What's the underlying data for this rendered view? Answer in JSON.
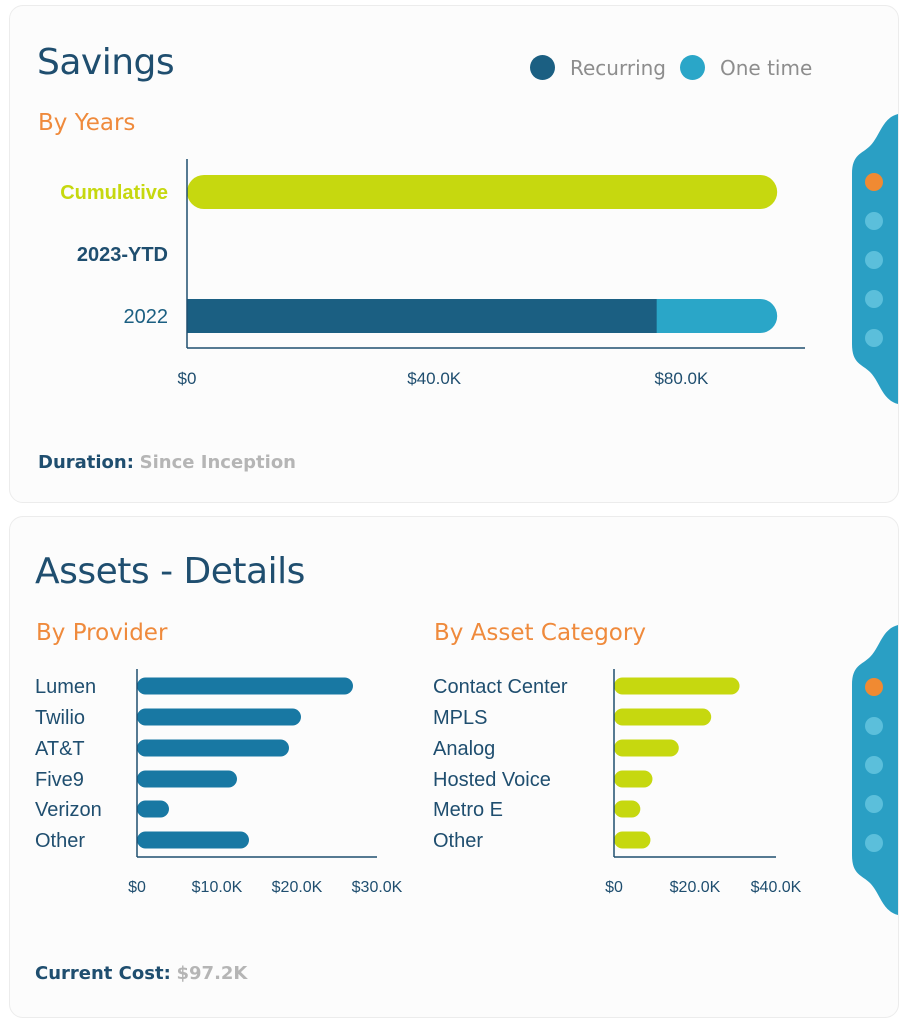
{
  "colors": {
    "recurring": "#1b5f82",
    "one_time": "#2aa6c8",
    "cumulative": "#c6d80f",
    "provider_bar": "#1878a3",
    "category_bar": "#c6d80f",
    "axis": "#1f4e6f",
    "orange": "#ef8a3c",
    "tab_blue": "#2a9fc4"
  },
  "savings": {
    "title": "Savings",
    "subtitle": "By Years",
    "legend": [
      {
        "label": "Recurring",
        "color": "#1b5f82"
      },
      {
        "label": "One time",
        "color": "#2aa6c8"
      }
    ],
    "footer": {
      "label": "Duration:",
      "value": "Since Inception"
    }
  },
  "assets": {
    "title": "Assets - Details",
    "provider_subtitle": "By Provider",
    "category_subtitle": "By Asset Category",
    "footer": {
      "label": "Current Cost:",
      "value": "$97.2K"
    }
  },
  "chart_data": [
    {
      "type": "bar",
      "orientation": "horizontal",
      "stacked": true,
      "title": "By Years",
      "categories": [
        "Cumulative",
        "2023-YTD",
        "2022"
      ],
      "series": [
        {
          "name": "Recurring",
          "values": [
            null,
            0,
            76000
          ]
        },
        {
          "name": "One time",
          "values": [
            null,
            0,
            19500
          ]
        },
        {
          "name": "Cumulative",
          "values": [
            95500,
            null,
            null
          ]
        }
      ],
      "xlim": [
        0,
        100000
      ],
      "ticks": [
        "$0",
        "$40.0K",
        "$80.0K"
      ],
      "tick_values": [
        0,
        40000,
        80000
      ]
    },
    {
      "type": "bar",
      "orientation": "horizontal",
      "title": "By Provider",
      "categories": [
        "Lumen",
        "Twilio",
        "AT&T",
        "Five9",
        "Verizon",
        "Other"
      ],
      "values": [
        27000,
        20500,
        19000,
        12500,
        4000,
        14000
      ],
      "xlim": [
        0,
        30000
      ],
      "ticks": [
        "$0",
        "$10.0K",
        "$20.0K",
        "$30.0K"
      ],
      "tick_values": [
        0,
        10000,
        20000,
        30000
      ]
    },
    {
      "type": "bar",
      "orientation": "horizontal",
      "title": "By Asset Category",
      "categories": [
        "Contact Center",
        "MPLS",
        "Analog",
        "Hosted Voice",
        "Metro E",
        "Other"
      ],
      "values": [
        31000,
        24000,
        16000,
        9500,
        6500,
        9000
      ],
      "xlim": [
        0,
        40000
      ],
      "ticks": [
        "$0",
        "$20.0K",
        "$40.0K"
      ],
      "tick_values": [
        0,
        20000,
        40000
      ]
    }
  ]
}
